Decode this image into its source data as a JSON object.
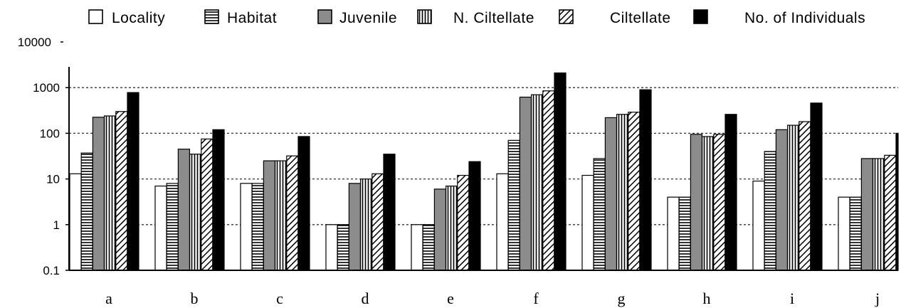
{
  "chart_data": {
    "type": "bar",
    "scale": "log",
    "ylim": [
      0.1,
      10000
    ],
    "yticks": [
      "10000",
      "1000",
      "100",
      "10",
      "1",
      "0.1"
    ],
    "grid": "horizontal-dashed",
    "legend_position": "top",
    "categories": [
      "a",
      "b",
      "c",
      "d",
      "e",
      "f",
      "g",
      "h",
      "i",
      "j"
    ],
    "series": [
      {
        "name": "Locality",
        "pattern": "white",
        "values": [
          13,
          7,
          8,
          1,
          1,
          13,
          12,
          4,
          9,
          4
        ]
      },
      {
        "name": "Habitat",
        "pattern": "horizontal",
        "values": [
          37,
          8,
          8,
          1,
          1,
          70,
          28,
          4,
          40,
          4
        ]
      },
      {
        "name": "Juvenile",
        "pattern": "gray",
        "values": [
          225,
          45,
          25,
          8,
          6,
          620,
          220,
          95,
          120,
          28
        ]
      },
      {
        "name": "N. Ciltellate",
        "pattern": "vertical",
        "values": [
          240,
          35,
          25,
          10,
          7,
          700,
          260,
          85,
          150,
          28
        ]
      },
      {
        "name": "Ciltellate",
        "pattern": "diagonal",
        "values": [
          300,
          75,
          32,
          13,
          12,
          850,
          290,
          95,
          180,
          33
        ]
      },
      {
        "name": "No. of Individuals",
        "pattern": "black",
        "values": [
          780,
          120,
          85,
          35,
          24,
          2100,
          900,
          260,
          460,
          100
        ]
      }
    ]
  },
  "colors": {
    "bar_stroke": "#000000",
    "gray_fill": "#8c8c8c",
    "grid": "#333333"
  }
}
